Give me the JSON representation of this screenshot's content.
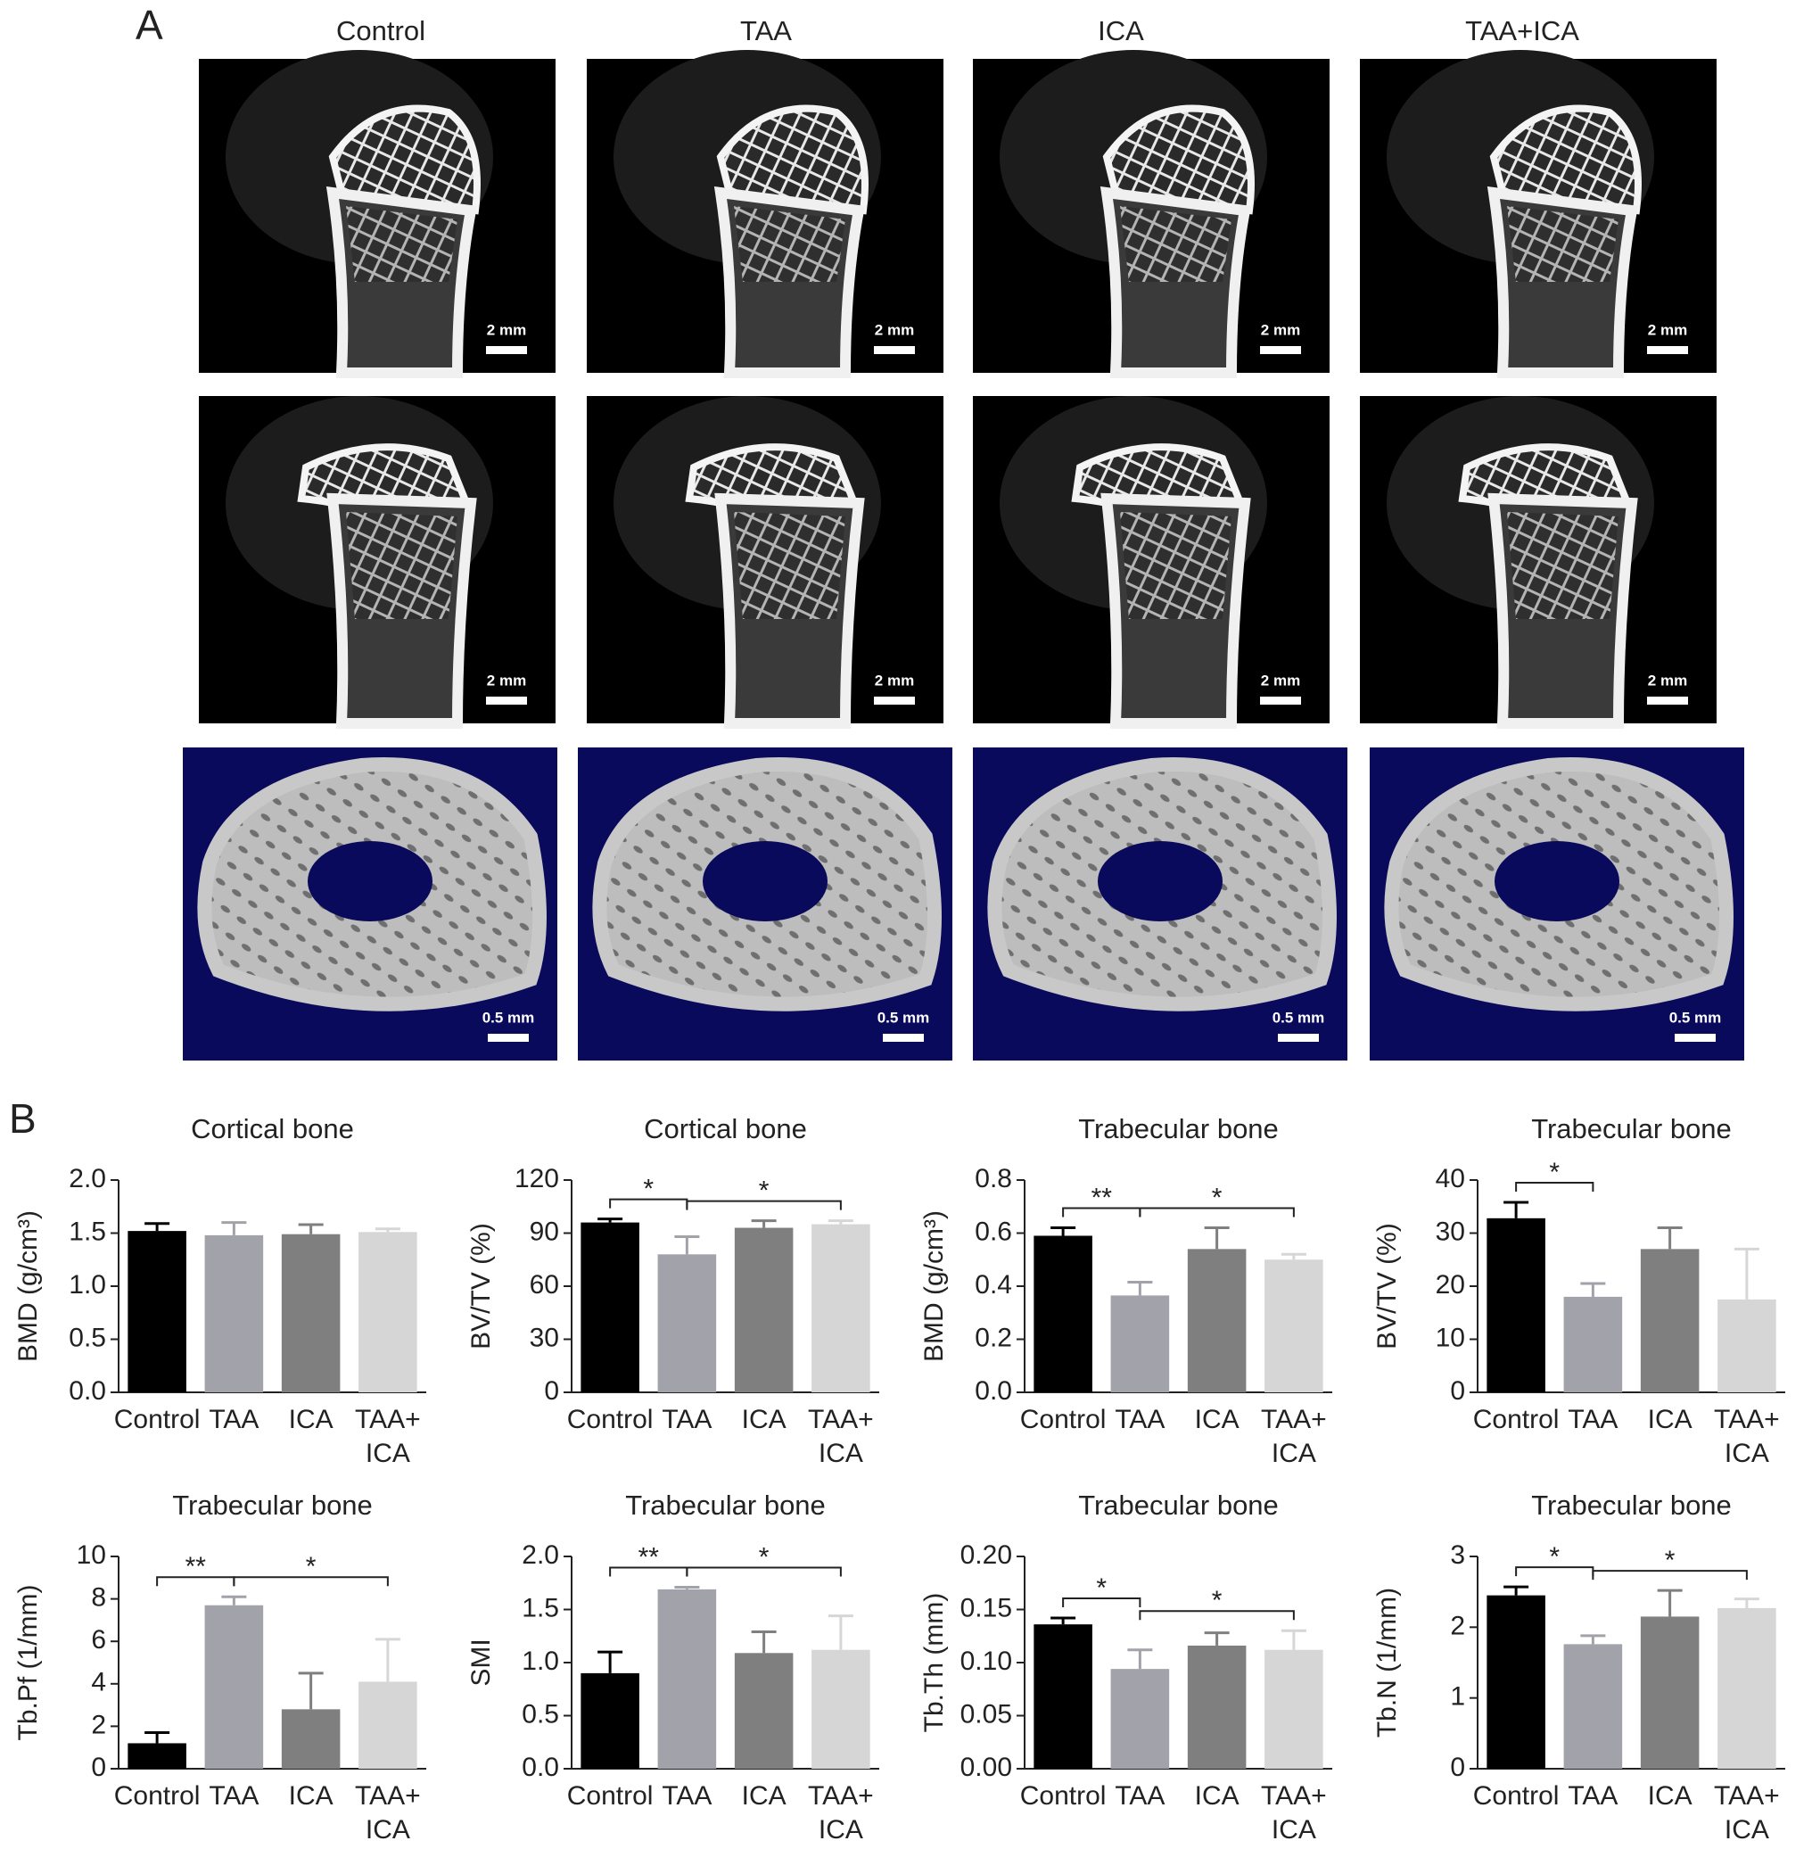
{
  "panel_a": {
    "label": "A",
    "columns": [
      "Control",
      "TAA",
      "ICA",
      "TAA+ICA"
    ],
    "rows": [
      {
        "scale_bar": "2 mm"
      },
      {
        "scale_bar": "2 mm"
      },
      {
        "scale_bar": "0.5 mm"
      }
    ]
  },
  "panel_b": {
    "label": "B"
  },
  "chart_data": [
    {
      "type": "bar",
      "title": "Cortical bone",
      "y_label": "BMD (g/cm³)",
      "categories": [
        "Control",
        "TAA",
        "ICA",
        "TAA+ICA"
      ],
      "values": [
        1.52,
        1.48,
        1.49,
        1.51
      ],
      "errors": [
        0.07,
        0.12,
        0.09,
        0.03
      ],
      "colors": [
        "#000000",
        "#a2a2aa",
        "#7f7f7f",
        "#d6d6d6"
      ],
      "ylim": [
        0,
        2
      ],
      "yticks": [
        {
          "value": 0,
          "label": "0.0"
        },
        0.5,
        {
          "value": 1,
          "label": "1.0"
        },
        1.5,
        {
          "value": 2,
          "label": "2.0"
        }
      ],
      "significance": []
    },
    {
      "type": "bar",
      "title": "Cortical bone",
      "y_label": "BV/TV (%)",
      "categories": [
        "Control",
        "TAA",
        "ICA",
        "TAA+ICA"
      ],
      "values": [
        96,
        78,
        93,
        95
      ],
      "errors": [
        2,
        10,
        4,
        2
      ],
      "colors": [
        "#000000",
        "#a2a2aa",
        "#7f7f7f",
        "#d6d6d6"
      ],
      "ylim": [
        0,
        120
      ],
      "yticks": [
        0,
        30,
        60,
        90,
        120
      ],
      "significance": [
        {
          "between": [
            "Control",
            "TAA"
          ],
          "label": "*"
        },
        {
          "between": [
            "TAA",
            "TAA+ICA"
          ],
          "label": "*"
        }
      ]
    },
    {
      "type": "bar",
      "title": "Trabecular bone",
      "y_label": "BMD (g/cm³)",
      "categories": [
        "Control",
        "TAA",
        "ICA",
        "TAA+ICA"
      ],
      "values": [
        0.59,
        0.365,
        0.54,
        0.5
      ],
      "errors": [
        0.03,
        0.05,
        0.08,
        0.02
      ],
      "colors": [
        "#000000",
        "#a2a2aa",
        "#7f7f7f",
        "#d6d6d6"
      ],
      "ylim": [
        0,
        0.8
      ],
      "yticks": [
        {
          "value": 0,
          "label": "0.0"
        },
        0.2,
        0.4,
        0.6,
        0.8
      ],
      "significance": [
        {
          "between": [
            "Control",
            "TAA"
          ],
          "label": "**"
        },
        {
          "between": [
            "TAA",
            "TAA+ICA"
          ],
          "label": "*"
        }
      ]
    },
    {
      "type": "bar",
      "title": "Trabecular bone",
      "y_label": "BV/TV (%)",
      "categories": [
        "Control",
        "TAA",
        "ICA",
        "TAA+ICA"
      ],
      "values": [
        32.8,
        18,
        27,
        17.5
      ],
      "errors": [
        3,
        2.5,
        4,
        9.5
      ],
      "colors": [
        "#000000",
        "#a2a2aa",
        "#7f7f7f",
        "#d6d6d6"
      ],
      "ylim": [
        0,
        40
      ],
      "yticks": [
        0,
        10,
        20,
        30,
        40
      ],
      "significance": [
        {
          "between": [
            "Control",
            "TAA"
          ],
          "label": "*"
        }
      ]
    },
    {
      "type": "bar",
      "title": "Trabecular bone",
      "y_label": "Tb.Pf (1/mm)",
      "categories": [
        "Control",
        "TAA",
        "ICA",
        "TAA+ICA"
      ],
      "values": [
        1.2,
        7.7,
        2.8,
        4.1
      ],
      "errors": [
        0.5,
        0.4,
        1.7,
        2
      ],
      "colors": [
        "#000000",
        "#a2a2aa",
        "#7f7f7f",
        "#d6d6d6"
      ],
      "ylim": [
        0,
        10
      ],
      "yticks": [
        0,
        2,
        4,
        6,
        8,
        10
      ],
      "significance": [
        {
          "between": [
            "Control",
            "TAA"
          ],
          "label": "**"
        },
        {
          "between": [
            "TAA",
            "TAA+ICA"
          ],
          "label": "*"
        }
      ]
    },
    {
      "type": "bar",
      "title": "Trabecular bone",
      "y_label": "SMI",
      "categories": [
        "Control",
        "TAA",
        "ICA",
        "TAA+ICA"
      ],
      "values": [
        0.9,
        1.69,
        1.09,
        1.12
      ],
      "errors": [
        0.2,
        0.02,
        0.2,
        0.32
      ],
      "colors": [
        "#000000",
        "#a2a2aa",
        "#7f7f7f",
        "#d6d6d6"
      ],
      "ylim": [
        0,
        2
      ],
      "yticks": [
        {
          "value": 0,
          "label": "0.0"
        },
        0.5,
        {
          "value": 1,
          "label": "1.0"
        },
        1.5,
        {
          "value": 2,
          "label": "2.0"
        }
      ],
      "significance": [
        {
          "between": [
            "Control",
            "TAA"
          ],
          "label": "**"
        },
        {
          "between": [
            "TAA",
            "TAA+ICA"
          ],
          "label": "*"
        }
      ]
    },
    {
      "type": "bar",
      "title": "Trabecular bone",
      "y_label": "Tb.Th (mm)",
      "categories": [
        "Control",
        "TAA",
        "ICA",
        "TAA+ICA"
      ],
      "values": [
        0.136,
        0.094,
        0.116,
        0.112
      ],
      "errors": [
        0.006,
        0.018,
        0.012,
        0.018
      ],
      "colors": [
        "#000000",
        "#a2a2aa",
        "#7f7f7f",
        "#d6d6d6"
      ],
      "ylim": [
        0,
        0.2
      ],
      "yticks": [
        {
          "value": 0,
          "label": "0.00"
        },
        0.05,
        {
          "value": 0.1,
          "label": "0.10"
        },
        0.15,
        {
          "value": 0.2,
          "label": "0.20"
        }
      ],
      "significance": [
        {
          "between": [
            "Control",
            "TAA"
          ],
          "label": "*"
        },
        {
          "between": [
            "TAA",
            "TAA+ICA"
          ],
          "label": "*"
        }
      ]
    },
    {
      "type": "bar",
      "title": "Trabecular bone",
      "y_label": "Tb.N (1/mm)",
      "categories": [
        "Control",
        "TAA",
        "ICA",
        "TAA+ICA"
      ],
      "values": [
        2.45,
        1.76,
        2.15,
        2.27
      ],
      "errors": [
        0.12,
        0.12,
        0.37,
        0.13
      ],
      "colors": [
        "#000000",
        "#a2a2aa",
        "#7f7f7f",
        "#d6d6d6"
      ],
      "ylim": [
        0,
        3
      ],
      "yticks": [
        0,
        1,
        2,
        3
      ],
      "significance": [
        {
          "between": [
            "Control",
            "TAA"
          ],
          "label": "*"
        },
        {
          "between": [
            "TAA",
            "TAA+ICA"
          ],
          "label": "*"
        }
      ]
    }
  ]
}
